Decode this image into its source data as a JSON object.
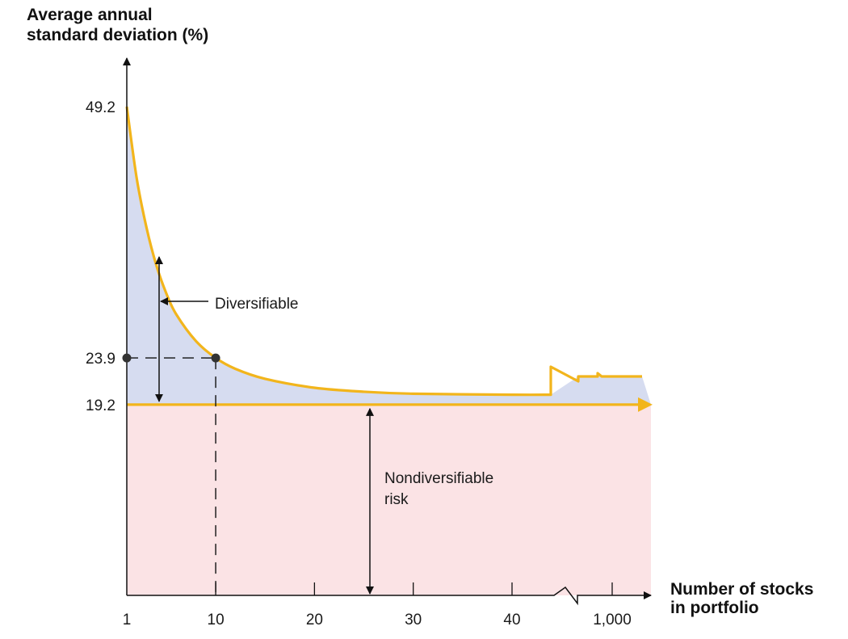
{
  "chart_data": {
    "type": "area",
    "ylabel_lines": [
      "Average annual",
      "standard deviation (%)"
    ],
    "xlabel_lines": [
      "Number of stocks",
      "in portfolio"
    ],
    "y_ticks": [
      {
        "value": 49.2,
        "label": "49.2"
      },
      {
        "value": 23.9,
        "label": "23.9"
      },
      {
        "value": 19.2,
        "label": "19.2"
      }
    ],
    "x_ticks": [
      {
        "value": 1,
        "label": "1"
      },
      {
        "value": 10,
        "label": "10"
      },
      {
        "value": 20,
        "label": "20"
      },
      {
        "value": 30,
        "label": "30"
      },
      {
        "value": 40,
        "label": "40"
      },
      {
        "value": 1000,
        "label": "1,000"
      }
    ],
    "ylim": [
      0,
      49.2
    ],
    "xlim": [
      1,
      1000
    ],
    "x_axis_break_after": 40,
    "series": [
      {
        "x": [
          1,
          2,
          3,
          4,
          5,
          6,
          8,
          10,
          12,
          15,
          20,
          25,
          30,
          40,
          1000
        ],
        "y": [
          49.2,
          42.0,
          37.0,
          33.2,
          30.4,
          28.3,
          25.6,
          23.9,
          22.8,
          21.8,
          20.9,
          20.5,
          20.3,
          20.2,
          19.2
        ]
      }
    ],
    "nondiversifiable_level": 19.2,
    "highlight_point": {
      "x": 10,
      "y": 23.9
    },
    "annotations": {
      "diversifiable": "Diversifiable",
      "nondiversifiable": [
        "Nondiversifiable",
        "risk"
      ]
    },
    "colors": {
      "curve": "#f2b51c",
      "diversifiable_fill": "#d6dcf0",
      "nondiversifiable_fill": "#fbe3e5",
      "axis": "#111111"
    }
  }
}
